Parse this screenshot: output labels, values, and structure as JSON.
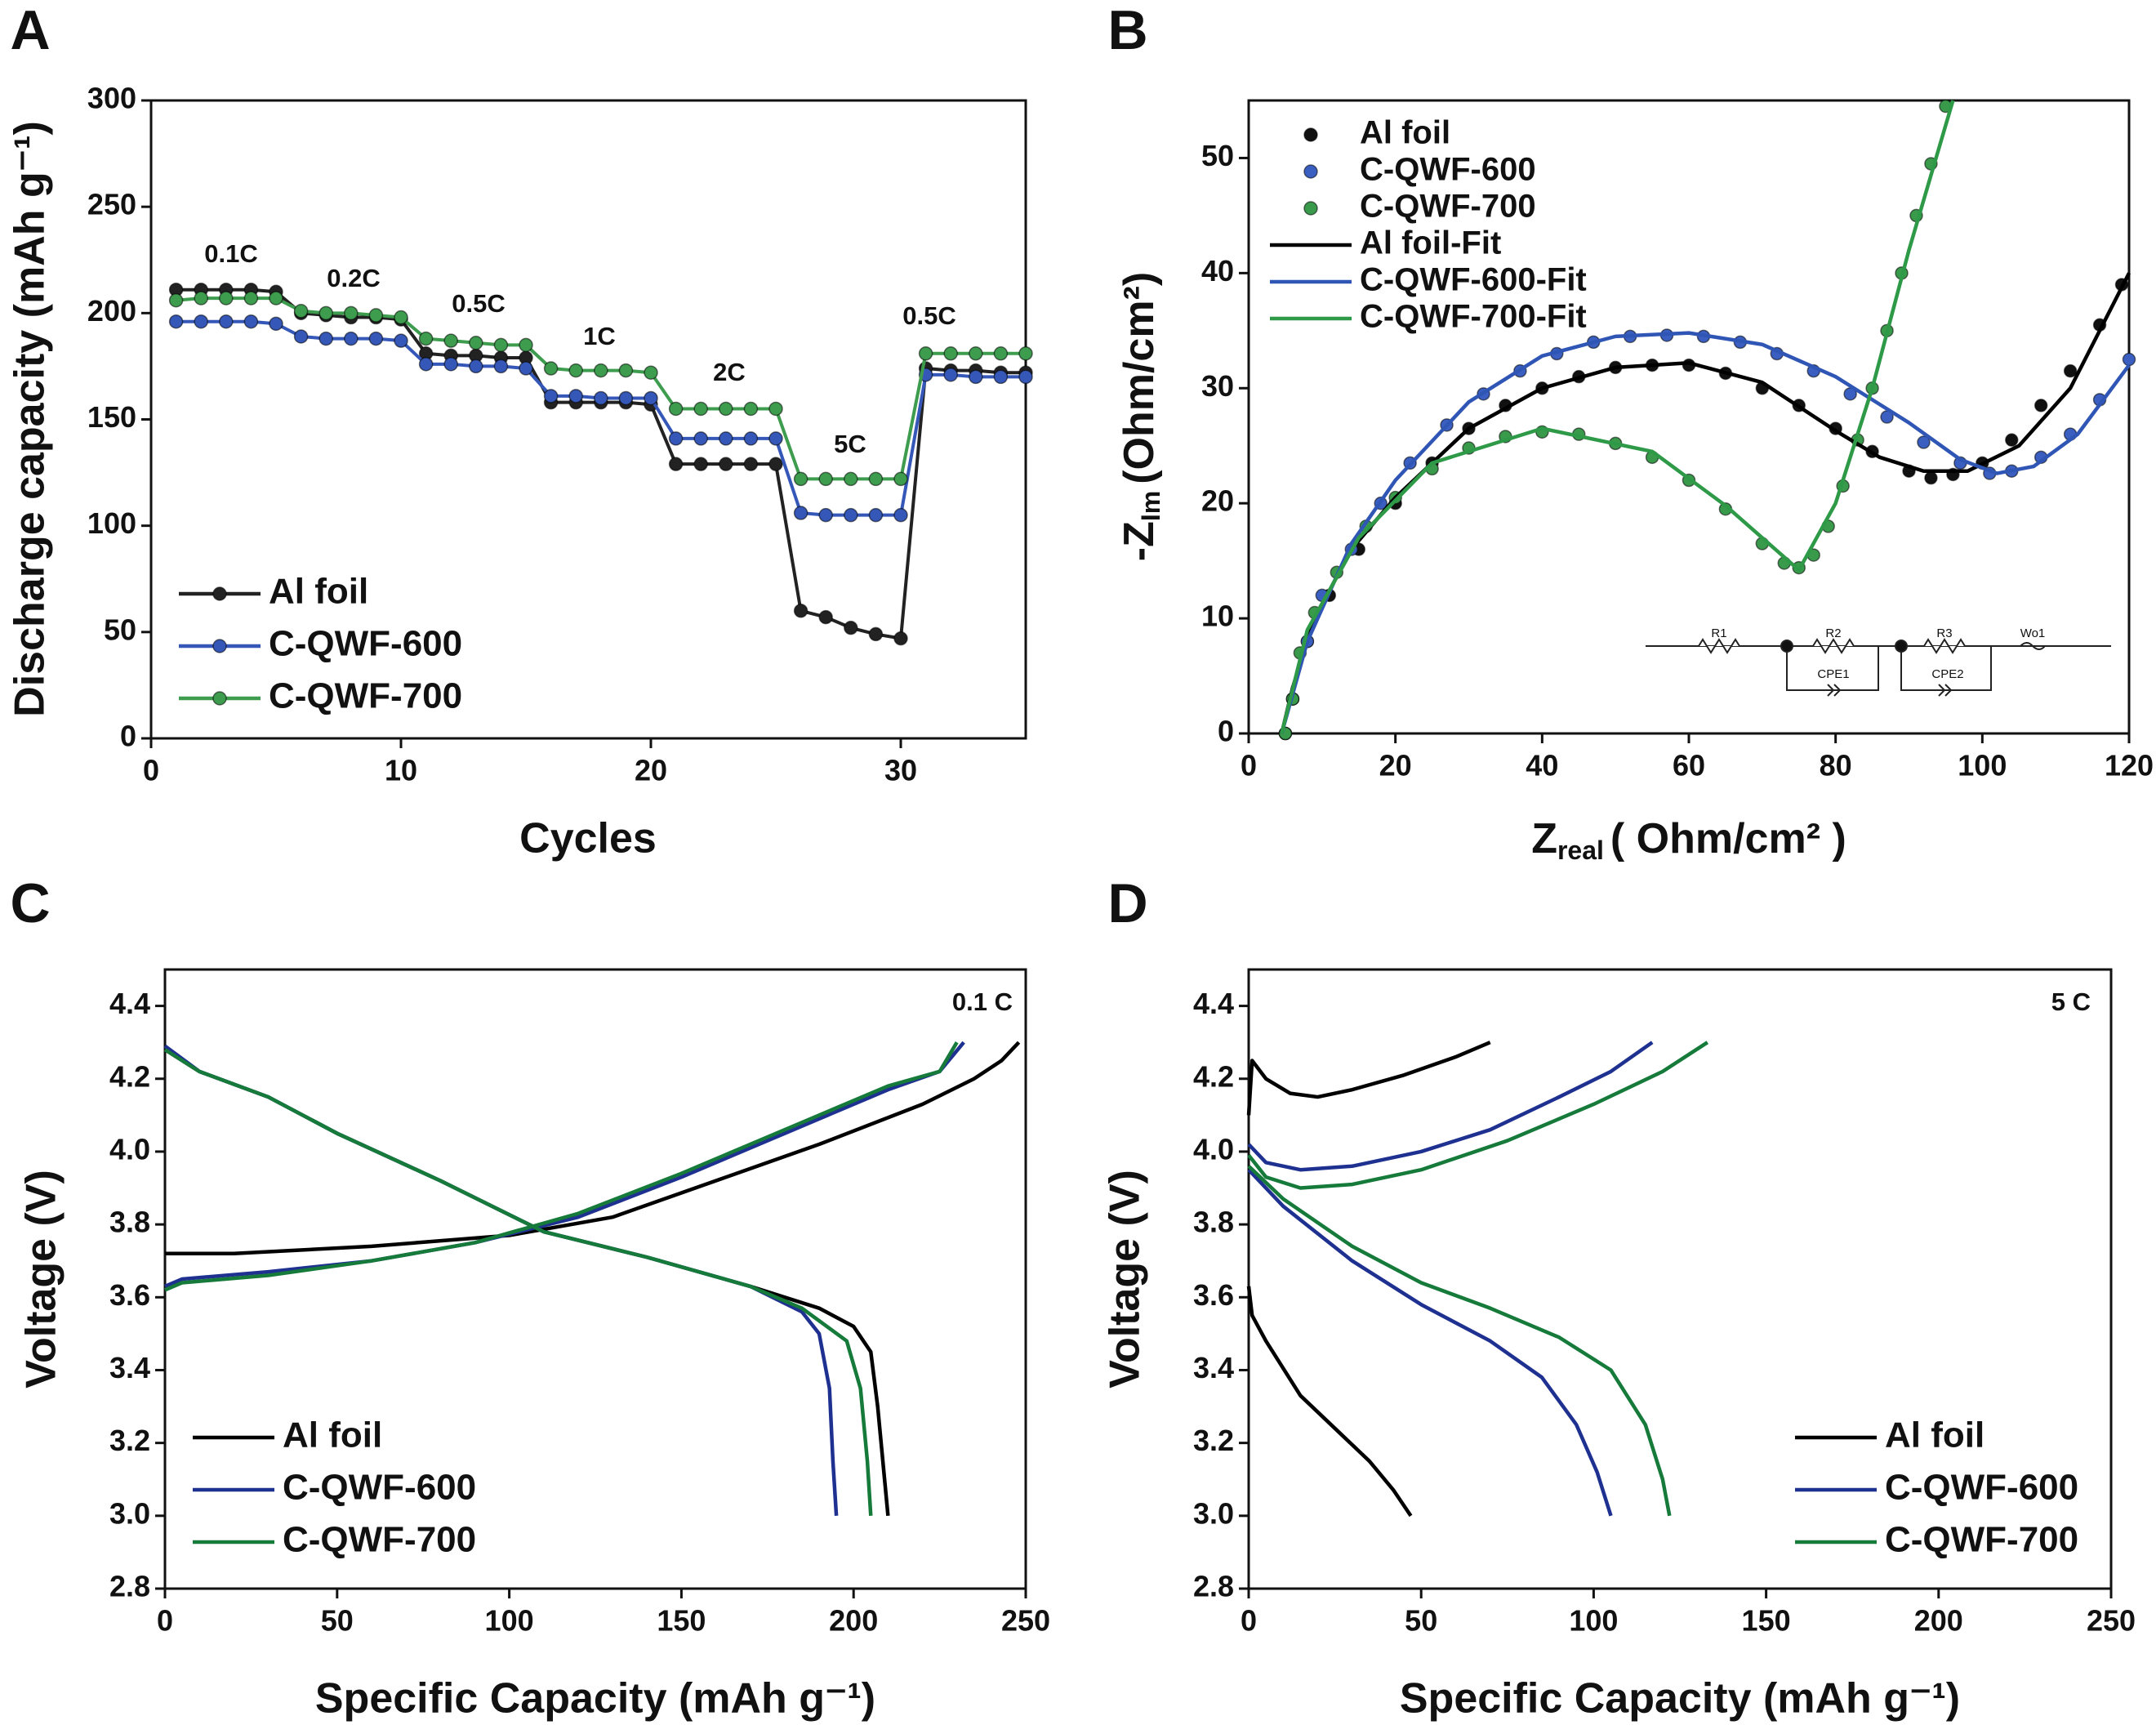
{
  "chart_data": [
    {
      "type": "line",
      "panel": "A",
      "markers": true,
      "xlabel": "Cycles",
      "ylabel": "Discharge capacity (mAh g⁻¹)",
      "xlim": [
        0,
        35
      ],
      "xticks": [
        0,
        10,
        20,
        30
      ],
      "ylim": [
        0,
        300
      ],
      "yticks": [
        0,
        50,
        100,
        150,
        200,
        250,
        300
      ],
      "legend": "lower left",
      "annotations": [
        "0.1C",
        "0.2C",
        "0.5C",
        "1C",
        "2C",
        "5C",
        "0.5C"
      ],
      "x": [
        1,
        2,
        3,
        4,
        5,
        6,
        7,
        8,
        9,
        10,
        11,
        12,
        13,
        14,
        15,
        16,
        17,
        18,
        19,
        20,
        21,
        22,
        23,
        24,
        25,
        26,
        27,
        28,
        29,
        30,
        31,
        32,
        33,
        34,
        35
      ],
      "series": [
        {
          "name": "Al foil",
          "color": "#222222",
          "values": [
            211,
            211,
            211,
            211,
            210,
            200,
            199,
            198,
            198,
            197,
            181,
            180,
            180,
            179,
            179,
            158,
            158,
            158,
            158,
            157,
            129,
            129,
            129,
            129,
            129,
            60,
            57,
            52,
            49,
            47,
            174,
            173,
            173,
            172,
            172
          ]
        },
        {
          "name": "C-QWF-600",
          "color": "#3557b7",
          "values": [
            196,
            196,
            196,
            196,
            195,
            189,
            188,
            188,
            188,
            187,
            176,
            176,
            175,
            175,
            174,
            161,
            161,
            160,
            160,
            160,
            141,
            141,
            141,
            141,
            141,
            106,
            105,
            105,
            105,
            105,
            171,
            171,
            170,
            170,
            170
          ]
        },
        {
          "name": "C-QWF-700",
          "color": "#3d9c4d",
          "values": [
            206,
            207,
            207,
            207,
            207,
            201,
            200,
            200,
            199,
            198,
            188,
            187,
            186,
            185,
            185,
            174,
            173,
            173,
            173,
            172,
            155,
            155,
            155,
            155,
            155,
            122,
            122,
            122,
            122,
            122,
            181,
            181,
            181,
            181,
            181
          ]
        }
      ]
    },
    {
      "type": "scatter",
      "panel": "B",
      "xlabel": "Z",
      "xlabel_sub": "real",
      "xlabel_unit": "( Ohm/cm² )",
      "ylabel": "-Z",
      "ylabel_sub": "Im",
      "ylabel_unit": "(Ohm/cm²)",
      "xlim": [
        0,
        120
      ],
      "xticks": [
        0,
        20,
        40,
        60,
        80,
        100,
        120
      ],
      "ylim": [
        0,
        55
      ],
      "yticks": [
        0,
        10,
        20,
        30,
        40,
        50
      ],
      "legend": "upper left",
      "circuit_labels": [
        "R1",
        "R2",
        "CPE1",
        "R3",
        "CPE2",
        "Wo1"
      ],
      "series": [
        {
          "name": "Al foil",
          "color": "#111111",
          "marker": "circle",
          "x": [
            5,
            6,
            8,
            11,
            15,
            20,
            25,
            30,
            35,
            40,
            45,
            50,
            55,
            60,
            65,
            70,
            75,
            80,
            85,
            90,
            93,
            96,
            100,
            104,
            108,
            112,
            116,
            119
          ],
          "values": [
            0,
            3,
            8,
            12,
            16,
            20,
            23.5,
            26.5,
            28.5,
            30,
            31,
            31.8,
            32,
            32,
            31.3,
            30,
            28.5,
            26.5,
            24.5,
            22.8,
            22.2,
            22.5,
            23.5,
            25.5,
            28.5,
            31.5,
            35.5,
            39
          ]
        },
        {
          "name": "C-QWF-600",
          "color": "#3a5fc0",
          "marker": "circle",
          "x": [
            5,
            6,
            8,
            10,
            14,
            18,
            22,
            27,
            32,
            37,
            42,
            47,
            52,
            57,
            62,
            67,
            72,
            77,
            82,
            87,
            92,
            97,
            101,
            104,
            108,
            112,
            116,
            120
          ],
          "values": [
            0,
            3,
            8,
            12,
            16,
            20,
            23.5,
            26.8,
            29.5,
            31.5,
            33,
            34,
            34.5,
            34.6,
            34.5,
            34,
            33,
            31.5,
            29.5,
            27.5,
            25.3,
            23.5,
            22.6,
            22.8,
            24,
            26,
            29,
            32.5
          ]
        },
        {
          "name": "C-QWF-700",
          "color": "#3a9a4c",
          "marker": "circle",
          "x": [
            5,
            6,
            7,
            9,
            12,
            16,
            20,
            25,
            30,
            35,
            40,
            45,
            50,
            55,
            60,
            65,
            70,
            73,
            75,
            77,
            79,
            81,
            83,
            85,
            87,
            89,
            91,
            93,
            95
          ],
          "values": [
            0,
            3,
            7,
            10.5,
            14,
            18,
            20.5,
            23,
            24.8,
            25.8,
            26.2,
            26,
            25.2,
            24,
            22,
            19.5,
            16.5,
            14.8,
            14.4,
            15.5,
            18,
            21.5,
            25.5,
            30,
            35,
            40,
            45,
            49.5,
            54.5
          ]
        },
        {
          "name": "Al foil-Fit",
          "color": "#000000",
          "x": [
            4.5,
            6,
            9,
            14,
            20,
            30,
            40,
            50,
            60,
            70,
            80,
            86,
            92,
            98,
            105,
            112,
            120
          ],
          "values": [
            0,
            4,
            10,
            16,
            20.5,
            26.5,
            30,
            31.8,
            32.2,
            30.5,
            26.3,
            24,
            22.8,
            22.8,
            25,
            30,
            40
          ]
        },
        {
          "name": "C-QWF-600-Fit",
          "color": "#2f55b5",
          "x": [
            4.5,
            8,
            14,
            20,
            30,
            40,
            50,
            60,
            70,
            80,
            90,
            97,
            102,
            107,
            113,
            120
          ],
          "values": [
            0,
            8,
            16.5,
            22,
            28.8,
            32.8,
            34.5,
            34.8,
            33.8,
            31,
            27,
            23.8,
            22.6,
            23.2,
            26,
            32
          ]
        },
        {
          "name": "C-QWF-700-Fit",
          "color": "#2e9a48",
          "x": [
            4.5,
            8,
            15,
            25,
            40,
            55,
            65,
            75,
            80,
            85,
            90,
            96
          ],
          "values": [
            0,
            9,
            17,
            23.5,
            26.5,
            24.5,
            19.8,
            14.2,
            20,
            30,
            42,
            55
          ]
        }
      ]
    },
    {
      "type": "line",
      "panel": "C",
      "xlabel": "Specific Capacity (mAh g⁻¹)",
      "ylabel": "Voltage (V)",
      "xlim": [
        0,
        250
      ],
      "xticks": [
        0,
        50,
        100,
        150,
        200,
        250
      ],
      "ylim": [
        2.8,
        4.5
      ],
      "yticks": [
        2.8,
        {
          "value": 3,
          "label": "3.0"
        },
        3.2,
        3.4,
        3.6,
        3.8,
        {
          "value": 4,
          "label": "4.0"
        },
        4.2,
        4.4
      ],
      "legend": "lower left",
      "annotations": [
        "0.1 C"
      ],
      "series": [
        {
          "name": "Al foil",
          "color": "#000000",
          "curves": [
            {
              "x": [
                0,
                20,
                60,
                100,
                130,
                160,
                190,
                220,
                235,
                243,
                248
              ],
              "values": [
                3.72,
                3.72,
                3.74,
                3.77,
                3.82,
                3.92,
                4.02,
                4.13,
                4.2,
                4.25,
                4.3
              ]
            },
            {
              "x": [
                0,
                10,
                30,
                50,
                80,
                110,
                140,
                170,
                190,
                200,
                205,
                207,
                209,
                210
              ],
              "values": [
                4.28,
                4.22,
                4.15,
                4.05,
                3.92,
                3.78,
                3.71,
                3.63,
                3.57,
                3.52,
                3.45,
                3.3,
                3.1,
                3.0
              ]
            }
          ]
        },
        {
          "name": "C-QWF-600",
          "color": "#1e3190",
          "curves": [
            {
              "x": [
                0,
                5,
                30,
                60,
                90,
                120,
                150,
                180,
                210,
                225,
                232
              ],
              "values": [
                3.63,
                3.65,
                3.67,
                3.7,
                3.75,
                3.82,
                3.93,
                4.05,
                4.17,
                4.22,
                4.3
              ]
            },
            {
              "x": [
                0,
                10,
                30,
                50,
                80,
                110,
                140,
                170,
                185,
                190,
                193,
                194,
                195
              ],
              "values": [
                4.29,
                4.22,
                4.15,
                4.05,
                3.92,
                3.78,
                3.71,
                3.63,
                3.56,
                3.5,
                3.35,
                3.15,
                3.0
              ]
            }
          ]
        },
        {
          "name": "C-QWF-700",
          "color": "#157a3a",
          "curves": [
            {
              "x": [
                0,
                5,
                30,
                60,
                90,
                120,
                150,
                180,
                210,
                225,
                230
              ],
              "values": [
                3.62,
                3.64,
                3.66,
                3.7,
                3.75,
                3.83,
                3.94,
                4.06,
                4.18,
                4.22,
                4.3
              ]
            },
            {
              "x": [
                0,
                10,
                30,
                50,
                80,
                110,
                140,
                170,
                185,
                198,
                202,
                204,
                205
              ],
              "values": [
                4.28,
                4.22,
                4.15,
                4.05,
                3.92,
                3.78,
                3.71,
                3.63,
                3.57,
                3.48,
                3.35,
                3.15,
                3.0
              ]
            }
          ]
        }
      ]
    },
    {
      "type": "line",
      "panel": "D",
      "xlabel": "Specific Capacity (mAh g⁻¹)",
      "ylabel": "Voltage (V)",
      "xlim": [
        0,
        250
      ],
      "xticks": [
        0,
        50,
        100,
        150,
        200,
        250
      ],
      "ylim": [
        2.8,
        4.5
      ],
      "yticks": [
        2.8,
        {
          "value": 3,
          "label": "3.0"
        },
        3.2,
        3.4,
        3.6,
        3.8,
        {
          "value": 4,
          "label": "4.0"
        },
        4.2,
        4.4
      ],
      "legend": "lower right",
      "annotations": [
        "5 C"
      ],
      "series": [
        {
          "name": "Al foil",
          "color": "#000000",
          "curves": [
            {
              "x": [
                0,
                1,
                5,
                12,
                20,
                30,
                45,
                60,
                70
              ],
              "values": [
                4.1,
                4.25,
                4.2,
                4.16,
                4.15,
                4.17,
                4.21,
                4.26,
                4.3
              ]
            },
            {
              "x": [
                0,
                1,
                5,
                15,
                25,
                35,
                42,
                47
              ],
              "values": [
                3.63,
                3.55,
                3.48,
                3.33,
                3.24,
                3.15,
                3.07,
                3.0
              ]
            }
          ]
        },
        {
          "name": "C-QWF-600",
          "color": "#1e3190",
          "curves": [
            {
              "x": [
                0,
                5,
                15,
                30,
                50,
                70,
                90,
                105,
                117
              ],
              "values": [
                4.02,
                3.97,
                3.95,
                3.96,
                4.0,
                4.06,
                4.15,
                4.22,
                4.3
              ]
            },
            {
              "x": [
                0,
                10,
                30,
                50,
                70,
                85,
                95,
                101,
                105
              ],
              "values": [
                3.95,
                3.85,
                3.7,
                3.58,
                3.48,
                3.38,
                3.25,
                3.12,
                3.0
              ]
            }
          ]
        },
        {
          "name": "C-QWF-700",
          "color": "#157a3a",
          "curves": [
            {
              "x": [
                0,
                5,
                15,
                30,
                50,
                75,
                100,
                120,
                133
              ],
              "values": [
                3.99,
                3.93,
                3.9,
                3.91,
                3.95,
                4.03,
                4.13,
                4.22,
                4.3
              ]
            },
            {
              "x": [
                0,
                10,
                30,
                50,
                70,
                90,
                105,
                115,
                120,
                122
              ],
              "values": [
                3.96,
                3.87,
                3.74,
                3.64,
                3.57,
                3.49,
                3.4,
                3.25,
                3.1,
                3.0
              ]
            }
          ]
        }
      ]
    }
  ]
}
